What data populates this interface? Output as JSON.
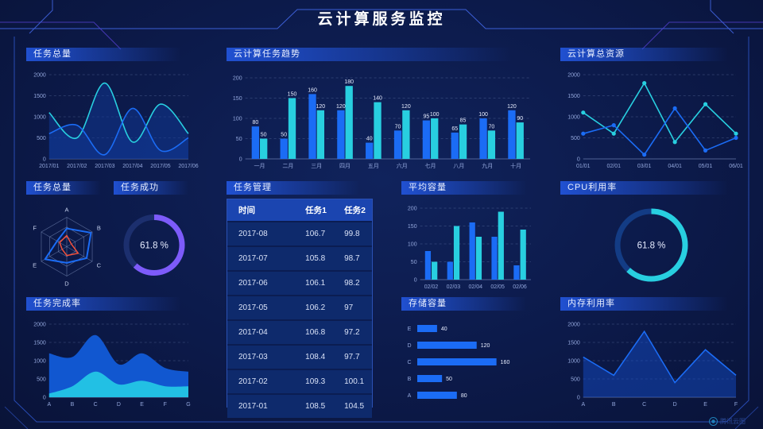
{
  "header": {
    "title": "云计算服务监控"
  },
  "watermark": "腾讯云图",
  "colors": {
    "blue": "#1b6cf5",
    "cyan": "#28cfe0",
    "purple": "#7d5bfa",
    "red": "#f4503a",
    "axis": "#93a7dc",
    "grid": "rgba(147,167,220,0.22)",
    "baseline": "rgba(147,167,220,0.5)",
    "label": "#e8eeff",
    "bg": "#0c1a4a"
  },
  "panels": {
    "tasks_total_line": {
      "title": "任务总量"
    },
    "trend": {
      "title": "云计算任务趋势"
    },
    "resources": {
      "title": "云计算总资源"
    },
    "radar": {
      "title": "任务总量"
    },
    "success": {
      "title": "任务成功",
      "value": "61.8 %"
    },
    "management": {
      "title": "任务管理",
      "columns": [
        "时间",
        "任务1",
        "任务2"
      ],
      "rows": [
        [
          "2017-08",
          "106.7",
          "99.8"
        ],
        [
          "2017-07",
          "105.8",
          "98.7"
        ],
        [
          "2017-06",
          "106.1",
          "98.2"
        ],
        [
          "2017-05",
          "106.2",
          "97"
        ],
        [
          "2017-04",
          "106.8",
          "97.2"
        ],
        [
          "2017-03",
          "108.4",
          "97.7"
        ],
        [
          "2017-02",
          "109.3",
          "100.1"
        ],
        [
          "2017-01",
          "108.5",
          "104.5"
        ]
      ]
    },
    "avg_capacity": {
      "title": "平均容量"
    },
    "cpu": {
      "title": "CPU利用率",
      "value": "61.8 %"
    },
    "completion": {
      "title": "任务完成率"
    },
    "storage": {
      "title": "存储容量"
    },
    "memory": {
      "title": "内存利用率"
    }
  },
  "chart_data": [
    {
      "id": "tasks_total_line",
      "type": "area",
      "smooth": true,
      "fill": true,
      "title": "任务总量",
      "x": [
        "2017/01",
        "2017/02",
        "2017/03",
        "2017/04",
        "2017/05",
        "2017/06"
      ],
      "series": [
        {
          "name": "series-cyan",
          "color": "cyan",
          "values": [
            1100,
            500,
            1800,
            400,
            1300,
            600
          ]
        },
        {
          "name": "series-blue",
          "color": "blue",
          "values": [
            600,
            800,
            100,
            1200,
            200,
            500
          ]
        }
      ],
      "ylim": [
        0,
        2000
      ],
      "yticks": [
        0,
        500,
        1000,
        1500,
        2000
      ],
      "fillColor": "rgba(16,55,150,0.5)",
      "grid": true,
      "legend_position": "none"
    },
    {
      "id": "trend",
      "type": "bar",
      "labels": true,
      "title": "云计算任务趋势",
      "categories": [
        "一月",
        "二月",
        "三月",
        "四月",
        "五月",
        "六月",
        "七月",
        "八月",
        "九月",
        "十月"
      ],
      "series": [
        {
          "name": "任务1",
          "color": "blue",
          "values": [
            80,
            50,
            160,
            120,
            40,
            70,
            95,
            65,
            100,
            120
          ]
        },
        {
          "name": "任务2",
          "color": "cyan",
          "values": [
            50,
            150,
            120,
            180,
            140,
            120,
            100,
            85,
            70,
            90
          ]
        }
      ],
      "ylim": [
        0,
        200
      ],
      "yticks": [
        0,
        50,
        100,
        150,
        200
      ],
      "grid": true,
      "legend_position": "none"
    },
    {
      "id": "resources",
      "type": "line",
      "markers": true,
      "title": "云计算总资源",
      "x": [
        "01/01",
        "02/01",
        "03/01",
        "04/01",
        "05/01",
        "06/01"
      ],
      "series": [
        {
          "name": "series-cyan",
          "color": "cyan",
          "values": [
            1100,
            600,
            1800,
            400,
            1300,
            600
          ]
        },
        {
          "name": "series-blue",
          "color": "blue",
          "values": [
            600,
            800,
            100,
            1200,
            200,
            500
          ]
        }
      ],
      "ylim": [
        0,
        2000
      ],
      "yticks": [
        0,
        500,
        1000,
        1500,
        2000
      ],
      "grid": true,
      "legend_position": "none"
    },
    {
      "id": "radar",
      "type": "radar",
      "title": "任务总量",
      "axes": [
        "A",
        "B",
        "C",
        "D",
        "E",
        "F"
      ],
      "max": 100,
      "levels": 3,
      "series": [
        {
          "name": "series-blue",
          "color": "blue",
          "values": [
            62,
            95,
            78,
            55,
            85,
            38
          ]
        },
        {
          "name": "series-red",
          "color": "red",
          "values": [
            38,
            18,
            45,
            30,
            18,
            28
          ]
        }
      ]
    },
    {
      "id": "success",
      "type": "donut",
      "title": "任务成功",
      "value": 61.8,
      "display": "61.8 %",
      "color": "purple",
      "track": "#1c2f6e"
    },
    {
      "id": "avg_capacity",
      "type": "bar",
      "labels": false,
      "title": "平均容量",
      "categories": [
        "02/02",
        "02/03",
        "02/04",
        "02/05",
        "02/06"
      ],
      "series": [
        {
          "name": "series-blue",
          "color": "blue",
          "values": [
            80,
            50,
            160,
            120,
            40
          ]
        },
        {
          "name": "series-cyan",
          "color": "cyan",
          "values": [
            50,
            150,
            120,
            190,
            140
          ]
        }
      ],
      "ylim": [
        0,
        200
      ],
      "yticks": [
        0,
        50,
        100,
        150,
        200
      ],
      "grid": true,
      "legend_position": "none"
    },
    {
      "id": "cpu",
      "type": "donut",
      "title": "CPU利用率",
      "value": 61.8,
      "display": "61.8 %",
      "color": "cyan",
      "track": "#133c85"
    },
    {
      "id": "completion",
      "type": "area",
      "smooth": true,
      "fill": true,
      "title": "任务完成率",
      "x": [
        "A",
        "B",
        "C",
        "D",
        "E",
        "F",
        "G"
      ],
      "series": [
        {
          "name": "series-blue",
          "color": "blue",
          "values": [
            1200,
            1100,
            1700,
            900,
            1200,
            800,
            700
          ],
          "fillColor": "#1157d0",
          "stroke": false
        },
        {
          "name": "series-cyan",
          "color": "cyan",
          "values": [
            100,
            300,
            700,
            350,
            450,
            300,
            300
          ],
          "fillColor": "#22c0e4",
          "stroke": false
        }
      ],
      "ylim": [
        0,
        2000
      ],
      "yticks": [
        0,
        500,
        1000,
        1500,
        2000
      ],
      "grid": true,
      "legend_position": "none"
    },
    {
      "id": "storage",
      "type": "hbar",
      "title": "存储容量",
      "categories": [
        "E",
        "D",
        "C",
        "B",
        "A"
      ],
      "values": [
        40,
        120,
        160,
        50,
        80
      ],
      "xlim": [
        0,
        175
      ],
      "color": "blue",
      "grid": false
    },
    {
      "id": "memory",
      "type": "line",
      "markers": false,
      "fill": true,
      "title": "内存利用率",
      "x": [
        "A",
        "B",
        "C",
        "D",
        "E",
        "F"
      ],
      "series": [
        {
          "name": "series-blue",
          "color": "blue",
          "values": [
            1100,
            600,
            1800,
            400,
            1300,
            600
          ],
          "fillColor": "rgba(20,80,210,0.45)"
        }
      ],
      "ylim": [
        0,
        2000
      ],
      "yticks": [
        0,
        500,
        1000,
        1500,
        2000
      ],
      "grid": true,
      "legend_position": "none"
    }
  ]
}
